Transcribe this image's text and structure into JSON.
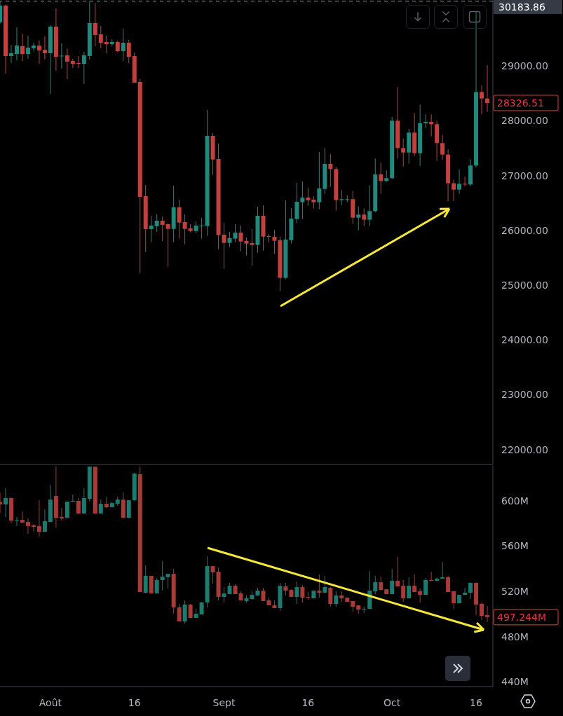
{
  "chart_data": [
    {
      "type": "candlestick",
      "tick_labels": "y",
      "x": [
        "--07-23",
        "--07-24",
        "--07-25",
        "--07-26",
        "--07-27",
        "--07-28",
        "--07-29",
        "--07-30",
        "--07-31",
        "--08-01",
        "--08-02",
        "--08-03",
        "--08-04",
        "--08-05",
        "--08-06",
        "--08-07",
        "--08-08",
        "--08-09",
        "--08-10",
        "--08-11",
        "--08-12",
        "--08-13",
        "--08-14",
        "--08-15",
        "--08-16",
        "--08-17",
        "--08-18",
        "--08-19",
        "--08-20",
        "--08-21",
        "--08-22",
        "--08-23",
        "--08-24",
        "--08-25",
        "--08-26",
        "--08-27",
        "--08-28",
        "--08-29",
        "--08-30",
        "--08-31",
        "--09-01",
        "--09-02",
        "--09-03",
        "--09-04",
        "--09-05",
        "--09-06",
        "--09-07",
        "--09-08",
        "--09-09",
        "--09-10",
        "--09-11",
        "--09-12",
        "--09-13",
        "--09-14",
        "--09-15",
        "--09-16",
        "--09-17",
        "--09-18",
        "--09-19",
        "--09-20",
        "--09-21",
        "--09-22",
        "--09-23",
        "--09-24",
        "--09-25",
        "--09-26",
        "--09-27",
        "--09-28",
        "--09-29",
        "--09-30",
        "--10-01",
        "--10-02",
        "--10-03",
        "--10-04",
        "--10-05",
        "--10-06",
        "--10-07",
        "--10-08",
        "--10-09",
        "--10-10",
        "--10-11",
        "--10-12",
        "--10-13",
        "--10-14",
        "--10-15",
        "--10-16",
        "--10-17",
        "--10-18"
      ],
      "ohlc": [
        [
          29801,
          30180,
          29767,
          30104
        ],
        [
          30104,
          30121,
          28863,
          29183
        ],
        [
          29183,
          29388,
          29055,
          29234
        ],
        [
          29221,
          29707,
          29106,
          29375
        ],
        [
          29362,
          29592,
          29093,
          29221
        ],
        [
          29221,
          29554,
          29132,
          29336
        ],
        [
          29324,
          29426,
          29272,
          29375
        ],
        [
          29375,
          29464,
          29042,
          29285
        ],
        [
          29298,
          29541,
          29119,
          29234
        ],
        [
          29234,
          29746,
          28492,
          29720
        ],
        [
          29720,
          30053,
          28914,
          29170
        ],
        [
          29183,
          29413,
          28953,
          29190
        ],
        [
          29196,
          29324,
          28761,
          29081
        ],
        [
          29093,
          29132,
          28965,
          29042
        ],
        [
          29055,
          29183,
          28965,
          29050
        ],
        [
          29042,
          29260,
          28671,
          29196
        ],
        [
          29183,
          30180,
          29119,
          29784
        ],
        [
          29784,
          30155,
          29362,
          29567
        ],
        [
          29579,
          29733,
          29324,
          29426
        ],
        [
          29439,
          29554,
          29234,
          29400
        ],
        [
          29400,
          29490,
          29362,
          29439
        ],
        [
          29439,
          29464,
          29260,
          29272
        ],
        [
          29272,
          29682,
          29093,
          29426
        ],
        [
          29426,
          29477,
          29055,
          29170
        ],
        [
          29183,
          29247,
          28690,
          28697
        ],
        [
          28710,
          28761,
          25218,
          26612
        ],
        [
          26625,
          26830,
          25602,
          26024
        ],
        [
          26024,
          26267,
          25781,
          26088
        ],
        [
          26075,
          26293,
          25973,
          26177
        ],
        [
          26177,
          26254,
          25807,
          26101
        ],
        [
          26113,
          26126,
          25337,
          26028
        ],
        [
          26028,
          26816,
          25785,
          26420
        ],
        [
          26420,
          26561,
          25849,
          26143
        ],
        [
          26151,
          26292,
          25746,
          26028
        ],
        [
          26036,
          26113,
          25964,
          25989
        ],
        [
          25989,
          26164,
          25951,
          26087
        ],
        [
          26080,
          26228,
          25849,
          26087
        ],
        [
          26079,
          28198,
          25900,
          27725
        ],
        [
          27725,
          27776,
          27013,
          27294
        ],
        [
          27302,
          27584,
          25657,
          25913
        ],
        [
          25921,
          26139,
          25299,
          25772
        ],
        [
          25772,
          25972,
          25695,
          25857
        ],
        [
          25849,
          26113,
          25785,
          25960
        ],
        [
          25960,
          26087,
          25619,
          25798
        ],
        [
          25806,
          25870,
          25542,
          25759
        ],
        [
          25768,
          26024,
          25350,
          25734
        ],
        [
          25734,
          26433,
          25593,
          26267
        ],
        [
          26267,
          26458,
          25631,
          25887
        ],
        [
          25896,
          25934,
          25785,
          25887
        ],
        [
          25883,
          26011,
          25567,
          25810
        ],
        [
          25819,
          25883,
          24890,
          25133
        ],
        [
          25133,
          26548,
          25107,
          25832
        ],
        [
          25823,
          26407,
          25759,
          26215
        ],
        [
          26207,
          26868,
          26130,
          26522
        ],
        [
          26514,
          26893,
          26207,
          26599
        ],
        [
          26599,
          26778,
          26450,
          26548
        ],
        [
          26561,
          26625,
          26399,
          26514
        ],
        [
          26514,
          27430,
          26386,
          26765
        ],
        [
          26757,
          27507,
          26667,
          27213
        ],
        [
          27213,
          27392,
          26796,
          27120
        ],
        [
          27120,
          27162,
          26361,
          26553
        ],
        [
          26553,
          26736,
          26463,
          26570
        ],
        [
          26557,
          26642,
          26514,
          26570
        ],
        [
          26570,
          26723,
          26118,
          26233
        ],
        [
          26233,
          26437,
          26000,
          26288
        ],
        [
          26288,
          26399,
          26079,
          26195
        ],
        [
          26195,
          26825,
          26079,
          26352
        ],
        [
          26352,
          27311,
          26327,
          27022
        ],
        [
          27022,
          27239,
          26668,
          26902
        ],
        [
          26902,
          27098,
          26889,
          26953
        ],
        [
          26953,
          28070,
          26940,
          28002
        ],
        [
          28002,
          28616,
          27307,
          27503
        ],
        [
          27503,
          27678,
          27166,
          27422
        ],
        [
          27422,
          27853,
          27218,
          27785
        ],
        [
          27785,
          28143,
          27358,
          27409
        ],
        [
          27409,
          28296,
          27179,
          27955
        ],
        [
          27955,
          28117,
          27870,
          27981
        ],
        [
          27981,
          28117,
          27716,
          27938
        ],
        [
          27938,
          28002,
          27269,
          27593
        ],
        [
          27593,
          27746,
          27294,
          27384
        ],
        [
          27384,
          27478,
          26531,
          26860
        ],
        [
          26860,
          26928,
          26540,
          26744
        ],
        [
          26744,
          27115,
          26668,
          26851
        ],
        [
          26851,
          26979,
          26808,
          26838
        ],
        [
          26838,
          27299,
          26808,
          27184
        ],
        [
          27184,
          30000,
          27145,
          28526
        ],
        [
          28526,
          28646,
          28117,
          28407
        ],
        [
          28407,
          29017,
          28164,
          28326.51
        ]
      ],
      "colors": [
        "#21897b",
        "#c4403f",
        "#21897b",
        "#21897b",
        "#c4403f",
        "#21897b",
        "#21897b",
        "#c4403f",
        "#c4403f",
        "#21897b",
        "#c4403f",
        "#21897b",
        "#c4403f",
        "#c4403f",
        "#c4403f",
        "#21897b",
        "#21897b",
        "#c4403f",
        "#c4403f",
        "#c4403f",
        "#21897b",
        "#c4403f",
        "#21897b",
        "#c4403f",
        "#c4403f",
        "#c4403f",
        "#c4403f",
        "#21897b",
        "#21897b",
        "#c4403f",
        "#c4403f",
        "#21897b",
        "#c4403f",
        "#c4403f",
        "#c4403f",
        "#21897b",
        "#21897b",
        "#21897b",
        "#c4403f",
        "#c4403f",
        "#c4403f",
        "#21897b",
        "#21897b",
        "#c4403f",
        "#c4403f",
        "#c4403f",
        "#21897b",
        "#c4403f",
        "#c4403f",
        "#c4403f",
        "#c4403f",
        "#21897b",
        "#21897b",
        "#21897b",
        "#21897b",
        "#c4403f",
        "#c4403f",
        "#21897b",
        "#21897b",
        "#c4403f",
        "#c4403f",
        "#21897b",
        "#21897b",
        "#c4403f",
        "#21897b",
        "#c4403f",
        "#21897b",
        "#21897b",
        "#c4403f",
        "#21897b",
        "#21897b",
        "#c4403f",
        "#c4403f",
        "#21897b",
        "#c4403f",
        "#21897b",
        "#21897b",
        "#c4403f",
        "#c4403f",
        "#c4403f",
        "#c4403f",
        "#c4403f",
        "#21897b",
        "#c4403f",
        "#21897b",
        "#21897b",
        "#c4403f",
        "#c4403f"
      ],
      "xlim": [
        "--07-23",
        "--10-19"
      ],
      "ylim": [
        21726,
        30206
      ],
      "yticks": [
        {
          "value": 22000,
          "label": "22000.00"
        },
        {
          "value": 23000,
          "label": "23000.00"
        },
        {
          "value": 24000,
          "label": "24000.00"
        },
        {
          "value": 25000,
          "label": "25000.00"
        },
        {
          "value": 26000,
          "label": "26000.00"
        },
        {
          "value": 27000,
          "label": "27000.00"
        },
        {
          "value": 28000,
          "label": "28000.00"
        },
        {
          "value": 29000,
          "label": "29000.00"
        }
      ],
      "ref_lines": [
        {
          "axis": "y",
          "value": 30183.86,
          "label": "30183.86",
          "color": "#9598a1",
          "line_style": "dashed"
        }
      ],
      "annotations": [
        {
          "text": "28326.51",
          "x": "--10-18",
          "y": 28326.51
        }
      ]
    },
    {
      "type": "candlestick",
      "x": [
        "--07-23",
        "--07-24",
        "--07-25",
        "--07-26",
        "--07-27",
        "--07-28",
        "--07-29",
        "--07-30",
        "--07-31",
        "--08-01",
        "--08-02",
        "--08-03",
        "--08-04",
        "--08-05",
        "--08-06",
        "--08-07",
        "--08-08",
        "--08-09",
        "--08-10",
        "--08-11",
        "--08-12",
        "--08-13",
        "--08-14",
        "--08-15",
        "--08-16",
        "--08-17",
        "--08-18",
        "--08-19",
        "--08-20",
        "--08-21",
        "--08-22",
        "--08-23",
        "--08-24",
        "--08-25",
        "--08-26",
        "--08-27",
        "--08-28",
        "--08-29",
        "--08-30",
        "--08-31",
        "--09-01",
        "--09-02",
        "--09-03",
        "--09-04",
        "--09-05",
        "--09-06",
        "--09-07",
        "--09-08",
        "--09-09",
        "--09-10",
        "--09-11",
        "--09-12",
        "--09-13",
        "--09-14",
        "--09-15",
        "--09-16",
        "--09-17",
        "--09-18",
        "--09-19",
        "--09-20",
        "--09-21",
        "--09-22",
        "--09-23",
        "--09-24",
        "--09-25",
        "--09-26",
        "--09-27",
        "--09-28",
        "--09-29",
        "--09-30",
        "--10-01",
        "--10-02",
        "--10-03",
        "--10-04",
        "--10-05",
        "--10-06",
        "--10-07",
        "--10-08",
        "--10-09",
        "--10-10",
        "--10-11",
        "--10-12",
        "--10-13",
        "--10-14",
        "--10-15",
        "--10-16",
        "--10-17",
        "--10-18"
      ],
      "ohlc": [
        [
          599.1,
          607.1,
          589.2,
          596.6
        ],
        [
          596.6,
          611.4,
          585.5,
          602.2
        ],
        [
          602.2,
          602.8,
          579.9,
          582.4
        ],
        [
          582.8,
          585.5,
          577.5,
          583.0
        ],
        [
          583.0,
          590.4,
          580.5,
          580.5
        ],
        [
          581.2,
          584.2,
          570.6,
          577.5
        ],
        [
          578.3,
          579.3,
          573.1,
          576.8
        ],
        [
          577.5,
          600.3,
          568.2,
          572.5
        ],
        [
          572.5,
          592.3,
          572.5,
          581.8
        ],
        [
          581.2,
          613.9,
          581.2,
          600.9
        ],
        [
          604.0,
          630,
          576.2,
          584.9
        ],
        [
          585.5,
          593.5,
          582.4,
          584.2
        ],
        [
          584.9,
          599.1,
          584.2,
          599.1
        ],
        [
          598.9,
          605.2,
          598.9,
          599.7
        ],
        [
          599.7,
          602.2,
          587.9,
          588.6
        ],
        [
          588.6,
          610.8,
          588.6,
          602.2
        ],
        [
          601.5,
          630,
          599.1,
          630
        ],
        [
          630,
          630,
          587.9,
          588.6
        ],
        [
          588.6,
          600.9,
          588.6,
          597.2
        ],
        [
          597.2,
          603.4,
          593.5,
          594.1
        ],
        [
          594.1,
          599.1,
          594.1,
          597.8
        ],
        [
          597.2,
          603.4,
          595.4,
          600.9
        ],
        [
          600.9,
          607.1,
          584.2,
          584.9
        ],
        [
          584.9,
          600.3,
          584.2,
          600.3
        ],
        [
          600.3,
          624.4,
          599.7,
          623.8
        ],
        [
          623.2,
          630,
          519.4,
          519.4
        ],
        [
          518.8,
          542.9,
          518.2,
          533.6
        ],
        [
          533.6,
          533.6,
          518.2,
          518.2
        ],
        [
          518.2,
          531.7,
          518.2,
          529.9
        ],
        [
          529.9,
          546.6,
          520.6,
          533.0
        ],
        [
          532.4,
          535.4,
          522.5,
          535.4
        ],
        [
          535.4,
          539.8,
          500.2,
          505.8
        ],
        [
          505.8,
          508.9,
          493.5,
          493.5
        ],
        [
          493.5,
          512.0,
          491.6,
          508.3
        ],
        [
          508.3,
          508.9,
          496.5,
          496.5
        ],
        [
          496.5,
          504.6,
          496.5,
          500.2
        ],
        [
          499.6,
          510.7,
          499.6,
          510.1
        ],
        [
          510.1,
          550.9,
          505.8,
          542.2
        ],
        [
          542.2,
          542.2,
          526.8,
          536.7
        ],
        [
          537.3,
          541.0,
          512.0,
          515.1
        ],
        [
          515.1,
          523.7,
          510.1,
          518.1
        ],
        [
          517.5,
          527.4,
          517.5,
          524.9
        ],
        [
          524.9,
          526.2,
          517.5,
          517.5
        ],
        [
          518.2,
          520.0,
          512.0,
          512.0
        ],
        [
          511.4,
          516.3,
          510.1,
          513.8
        ],
        [
          513.2,
          520.0,
          512.6,
          516.9
        ],
        [
          516.3,
          523.1,
          516.3,
          520.6
        ],
        [
          520.6,
          523.1,
          511.4,
          511.4
        ],
        [
          512.0,
          514.4,
          507.6,
          507.6
        ],
        [
          507.6,
          512.0,
          505.2,
          505.2
        ],
        [
          505.2,
          527.4,
          502.7,
          524.9
        ],
        [
          524.3,
          527.4,
          516.3,
          520.6
        ],
        [
          521.2,
          521.8,
          515.1,
          515.1
        ],
        [
          515.1,
          528.7,
          508.9,
          523.7
        ],
        [
          523.7,
          525.6,
          510.1,
          514.4
        ],
        [
          515.1,
          519.4,
          512.6,
          514.4
        ],
        [
          513.8,
          520.6,
          513.8,
          520.6
        ],
        [
          520.6,
          534.8,
          514.4,
          518.8
        ],
        [
          518.8,
          533.6,
          518.8,
          523.7
        ],
        [
          523.1,
          523.7,
          506.4,
          508.9
        ],
        [
          508.9,
          520.0,
          506.4,
          516.3
        ],
        [
          516.3,
          520.0,
          510.7,
          513.8
        ],
        [
          514.4,
          514.4,
          510.7,
          510.7
        ],
        [
          511.4,
          511.4,
          502.1,
          506.4
        ],
        [
          507.6,
          507.6,
          500.2,
          503.9
        ],
        [
          503.9,
          506.4,
          500.9,
          504.6
        ],
        [
          504.6,
          537.9,
          504.6,
          520.6
        ],
        [
          520.0,
          533.6,
          517.5,
          528.0
        ],
        [
          528.0,
          533.0,
          521.2,
          521.2
        ],
        [
          521.8,
          521.8,
          517.5,
          517.5
        ],
        [
          517.5,
          539.8,
          517.5,
          529.3
        ],
        [
          529.3,
          550.3,
          524.3,
          524.3
        ],
        [
          524.9,
          529.9,
          510.7,
          513.8
        ],
        [
          513.8,
          532.4,
          513.8,
          524.9
        ],
        [
          524.9,
          534.8,
          519.4,
          519.4
        ],
        [
          520.0,
          522.5,
          510.1,
          516.9
        ],
        [
          516.9,
          531.7,
          516.9,
          529.9
        ],
        [
          529.9,
          537.3,
          529.3,
          529.3
        ],
        [
          529.3,
          532.4,
          529.3,
          531.1
        ],
        [
          531.1,
          545.9,
          531.1,
          532.4
        ],
        [
          532.4,
          533.6,
          519.4,
          519.4
        ],
        [
          520.0,
          520.0,
          504.6,
          509.5
        ],
        [
          509.5,
          516.9,
          509.5,
          516.9
        ],
        [
          516.9,
          523.1,
          516.9,
          518.8
        ],
        [
          518.8,
          528.0,
          513.2,
          527.4
        ],
        [
          527.4,
          528.0,
          499.0,
          508.3
        ],
        [
          508.9,
          510.1,
          494.7,
          498.4
        ],
        [
          499.0,
          507.0,
          492.8,
          497.244
        ]
      ],
      "colors": [
        "#a83a39",
        "#1c7b6e",
        "#a83a39",
        "#1c7b6e",
        "#a83a39",
        "#a83a39",
        "#a83a39",
        "#a83a39",
        "#1c7b6e",
        "#1c7b6e",
        "#a83a39",
        "#a83a39",
        "#1c7b6e",
        "#1c7b6e",
        "#a83a39",
        "#1c7b6e",
        "#1c7b6e",
        "#a83a39",
        "#1c7b6e",
        "#a83a39",
        "#1c7b6e",
        "#1c7b6e",
        "#a83a39",
        "#1c7b6e",
        "#1c7b6e",
        "#a83a39",
        "#1c7b6e",
        "#a83a39",
        "#1c7b6e",
        "#1c7b6e",
        "#1c7b6e",
        "#a83a39",
        "#a83a39",
        "#1c7b6e",
        "#a83a39",
        "#1c7b6e",
        "#1c7b6e",
        "#1c7b6e",
        "#a83a39",
        "#a83a39",
        "#1c7b6e",
        "#1c7b6e",
        "#a83a39",
        "#a83a39",
        "#1c7b6e",
        "#1c7b6e",
        "#1c7b6e",
        "#a83a39",
        "#a83a39",
        "#a83a39",
        "#1c7b6e",
        "#a83a39",
        "#a83a39",
        "#1c7b6e",
        "#a83a39",
        "#a83a39",
        "#1c7b6e",
        "#a83a39",
        "#1c7b6e",
        "#a83a39",
        "#1c7b6e",
        "#a83a39",
        "#a83a39",
        "#a83a39",
        "#a83a39",
        "#1c7b6e",
        "#1c7b6e",
        "#1c7b6e",
        "#a83a39",
        "#a83a39",
        "#1c7b6e",
        "#a83a39",
        "#a83a39",
        "#1c7b6e",
        "#a83a39",
        "#a83a39",
        "#1c7b6e",
        "#a83a39",
        "#1c7b6e",
        "#1c7b6e",
        "#a83a39",
        "#a83a39",
        "#1c7b6e",
        "#1c7b6e",
        "#1c7b6e",
        "#a83a39",
        "#a83a39",
        "#a83a39"
      ],
      "xlim": [
        "--07-23",
        "--10-19"
      ],
      "xticks": [
        {
          "value": "--08-01",
          "label": "Août"
        },
        {
          "value": "--08-16",
          "label": "16"
        },
        {
          "value": "--09-01",
          "label": "Sept"
        },
        {
          "value": "--09-16",
          "label": "16"
        },
        {
          "value": "--10-01",
          "label": "Oct"
        },
        {
          "value": "--10-16",
          "label": "16"
        }
      ],
      "ylim": [
        436,
        630.6
      ],
      "yticks": [
        {
          "value": 440,
          "label": "440M"
        },
        {
          "value": 480,
          "label": "480M"
        },
        {
          "value": 520,
          "label": "520M"
        },
        {
          "value": 560,
          "label": "560M"
        },
        {
          "value": 600,
          "label": "600M"
        }
      ],
      "annotations": [
        {
          "text": "497.244M",
          "x": "--10-18",
          "y": 497.244
        }
      ]
    }
  ]
}
